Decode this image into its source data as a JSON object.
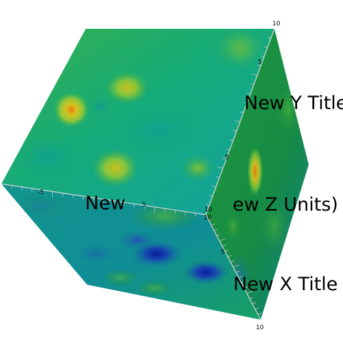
{
  "scene": {
    "background_color": "#ffffff",
    "colormap": [
      "#0a1f9e",
      "#0b6fa6",
      "#0f9c8f",
      "#13a86f",
      "#3cb24a",
      "#8dc63f",
      "#d6c31d",
      "#e08a12"
    ]
  },
  "axes": {
    "y_title": "New Y Title",
    "z_title": "(New Z Units)",
    "z_title_visible_fragment": "ew Z Units)",
    "x_title": "New X Title",
    "z_title_occluded_fragment": "New",
    "ticks": {
      "top_corner": "10",
      "right_bottom_corner": "10",
      "front_corner_a": "10",
      "front_corner_b": "10",
      "y_mid": "5",
      "z_mid": "5",
      "z_left": "-5",
      "x_mid": "5",
      "y_lower": "5",
      "x_lower": "5"
    }
  }
}
